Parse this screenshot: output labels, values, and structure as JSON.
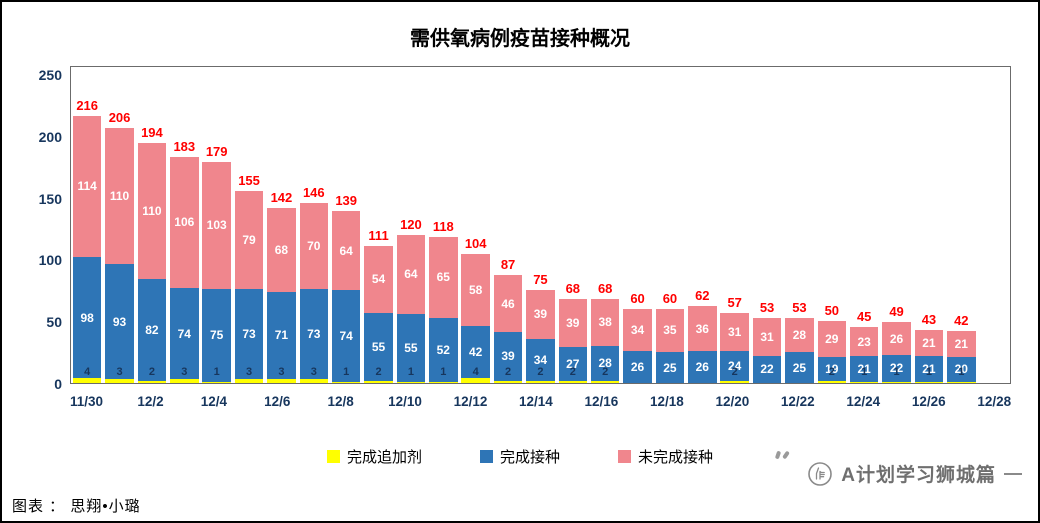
{
  "title": "需供氧病例疫苗接种概况",
  "chart_data": {
    "type": "bar",
    "stacked": true,
    "title": "需供氧病例疫苗接种概况",
    "ylim": [
      0,
      250
    ],
    "y_ticks": [
      0,
      50,
      100,
      150,
      200,
      250
    ],
    "x_tick_labels": [
      "11/30",
      "12/2",
      "12/4",
      "12/6",
      "12/8",
      "12/10",
      "12/12",
      "12/14",
      "12/16",
      "12/18",
      "12/20",
      "12/22",
      "12/24",
      "12/26",
      "12/28"
    ],
    "categories": [
      "11/30",
      "12/1",
      "12/2",
      "12/3",
      "12/4",
      "12/5",
      "12/6",
      "12/7",
      "12/8",
      "12/9",
      "12/10",
      "12/11",
      "12/12",
      "12/13",
      "12/14",
      "12/15",
      "12/16",
      "12/17",
      "12/18",
      "12/19",
      "12/20",
      "12/21",
      "12/22",
      "12/23",
      "12/24",
      "12/25",
      "12/26",
      "12/27"
    ],
    "series": [
      {
        "name": "完成追加剂",
        "color": "#FFFF00",
        "values": [
          4,
          3,
          2,
          3,
          1,
          3,
          3,
          3,
          1,
          2,
          1,
          1,
          4,
          2,
          2,
          2,
          2,
          0,
          0,
          0,
          2,
          0,
          0,
          2,
          1,
          1,
          1,
          1
        ]
      },
      {
        "name": "完成接种",
        "color": "#2E75B6",
        "values": [
          98,
          93,
          82,
          74,
          75,
          73,
          71,
          73,
          74,
          55,
          55,
          52,
          42,
          39,
          34,
          27,
          28,
          26,
          25,
          26,
          24,
          22,
          25,
          19,
          21,
          22,
          21,
          20
        ]
      },
      {
        "name": "未完成接种",
        "color": "#F0868D",
        "values": [
          114,
          110,
          110,
          106,
          103,
          79,
          68,
          70,
          64,
          54,
          64,
          65,
          58,
          46,
          39,
          39,
          38,
          34,
          35,
          36,
          31,
          31,
          28,
          29,
          23,
          26,
          21,
          21
        ]
      }
    ],
    "totals": [
      216,
      206,
      194,
      183,
      179,
      155,
      142,
      146,
      139,
      111,
      120,
      118,
      104,
      87,
      75,
      68,
      68,
      60,
      60,
      62,
      57,
      53,
      53,
      50,
      45,
      49,
      43,
      42
    ],
    "grid": false,
    "legend_position": "bottom"
  },
  "legend": {
    "items": [
      {
        "label": "完成追加剂",
        "color": "#FFFF00"
      },
      {
        "label": "完成接种",
        "color": "#2E75B6"
      },
      {
        "label": "未完成接种",
        "color": "#F0868D"
      }
    ]
  },
  "footer": {
    "credit": "图表 ： 思翔•小璐"
  },
  "watermark": {
    "text": "A计划学习狮城篇"
  },
  "colors": {
    "total_label": "#FF0000",
    "axis_label": "#17365D",
    "booster_value_label": "#17365D",
    "segment_label": "#FFFFFF"
  }
}
